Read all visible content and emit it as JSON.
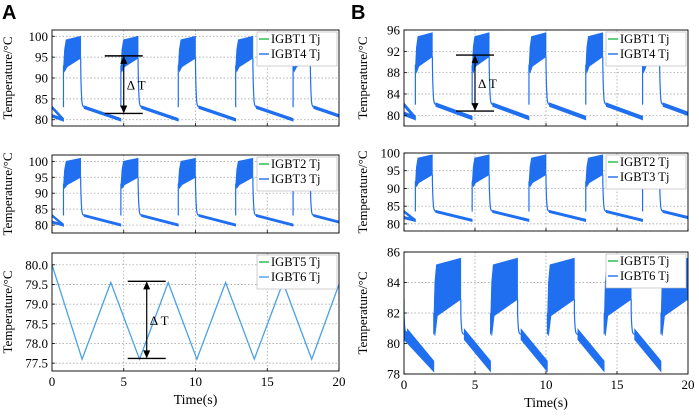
{
  "panels": [
    {
      "letter": "A"
    },
    {
      "letter": "B"
    }
  ],
  "chart_data": [
    {
      "type": "line",
      "panel": "A",
      "row": 1,
      "xlabel": "",
      "ylabel": "Temperature/°C",
      "xlim": [
        0,
        20
      ],
      "ylim": [
        78.5,
        101.5
      ],
      "xticks": [
        0,
        5,
        10,
        15,
        20
      ],
      "yticks": [
        80,
        85,
        90,
        95,
        100
      ],
      "ytick_labels": [
        "80",
        "85",
        "90",
        "95",
        "100"
      ],
      "shape": "pulse",
      "period": 4,
      "pulse_start": 0.8,
      "pulse_end": 2.0,
      "low_start": 83.0,
      "low_end": 80.0,
      "high_min": 93.0,
      "high_max": 100.0,
      "series": [
        {
          "name": "IGBT1 Tj",
          "color": "#22bb44"
        },
        {
          "name": "IGBT4 Tj",
          "color": "#1f6ff0"
        }
      ],
      "annotation": {
        "label": "Δ T",
        "x": 5.0,
        "y_top": 95.3,
        "y_bottom": 81.5
      }
    },
    {
      "type": "line",
      "panel": "A",
      "row": 2,
      "xlabel": "",
      "ylabel": "Temperature/°C",
      "xlim": [
        0,
        20
      ],
      "ylim": [
        77.5,
        102
      ],
      "xticks": [
        0,
        5,
        10,
        15,
        20
      ],
      "yticks": [
        80,
        85,
        90,
        95,
        100
      ],
      "ytick_labels": [
        "80",
        "85",
        "90",
        "95",
        "100"
      ],
      "shape": "pulse",
      "period": 4,
      "pulse_start": 0.8,
      "pulse_end": 2.0,
      "low_start": 83.0,
      "low_end": 80.0,
      "high_min": 93.0,
      "high_max": 101.0,
      "series": [
        {
          "name": "IGBT2 Tj",
          "color": "#22bb44"
        },
        {
          "name": "IGBT3 Tj",
          "color": "#1f6ff0"
        }
      ]
    },
    {
      "type": "line",
      "panel": "A",
      "row": 3,
      "xlabel": "Time(s)",
      "ylabel": "Temperature/°C",
      "xlim": [
        0,
        20
      ],
      "ylim": [
        77.3,
        80.3
      ],
      "xticks": [
        0,
        5,
        10,
        15,
        20
      ],
      "yticks": [
        77.5,
        78.0,
        78.5,
        79.0,
        79.5,
        80.0
      ],
      "ytick_labels": [
        "77.5",
        "78.0",
        "78.5",
        "79.0",
        "79.5",
        "80.0"
      ],
      "shape": "triangle",
      "points_x": [
        0,
        2.1,
        4.1,
        6.1,
        8.1,
        10.1,
        12.1,
        14.1,
        16.1,
        18.1,
        20
      ],
      "points_y": [
        80.0,
        77.6,
        79.55,
        77.6,
        79.55,
        77.6,
        79.55,
        77.6,
        79.55,
        77.6,
        79.5
      ],
      "series": [
        {
          "name": "IGBT5 Tj",
          "color": "#22bb44"
        },
        {
          "name": "IGBT6 Tj",
          "color": "#4aa0e8"
        }
      ],
      "annotation": {
        "label": "Δ T",
        "x": 6.6,
        "y_top": 79.58,
        "y_bottom": 77.62
      }
    },
    {
      "type": "line",
      "panel": "B",
      "row": 1,
      "xlabel": "",
      "ylabel": "Temperature/°C",
      "xlim": [
        0,
        20
      ],
      "ylim": [
        78,
        96
      ],
      "xticks": [
        0,
        5,
        10,
        15,
        20
      ],
      "yticks": [
        80,
        84,
        88,
        92,
        96
      ],
      "ytick_labels": [
        "80",
        "84",
        "88",
        "92",
        "96"
      ],
      "shape": "pulse",
      "period": 4,
      "pulse_start": 0.8,
      "pulse_end": 2.0,
      "low_start": 82.0,
      "low_end": 79.5,
      "high_min": 89.5,
      "high_max": 95.5,
      "series": [
        {
          "name": "IGBT1 Tj",
          "color": "#22bb44"
        },
        {
          "name": "IGBT4 Tj",
          "color": "#1f6ff0"
        }
      ],
      "annotation": {
        "label": "Δ T",
        "x": 5.0,
        "y_top": 91.3,
        "y_bottom": 80.8
      }
    },
    {
      "type": "line",
      "panel": "B",
      "row": 2,
      "xlabel": "",
      "ylabel": "Temperature/°C",
      "xlim": [
        0,
        20
      ],
      "ylim": [
        78,
        100
      ],
      "xticks": [
        0,
        5,
        10,
        15,
        20
      ],
      "yticks": [
        80,
        85,
        90,
        95,
        100
      ],
      "ytick_labels": [
        "80",
        "85",
        "90",
        "95",
        "100"
      ],
      "shape": "pulse",
      "period": 4,
      "pulse_start": 0.8,
      "pulse_end": 2.0,
      "low_start": 83.5,
      "low_end": 81.0,
      "high_min": 92.0,
      "high_max": 99.5,
      "series": [
        {
          "name": "IGBT2 Tj",
          "color": "#22bb44"
        },
        {
          "name": "IGBT3 Tj",
          "color": "#1f6ff0"
        }
      ]
    },
    {
      "type": "line",
      "panel": "B",
      "row": 3,
      "xlabel": "Time(s)",
      "ylabel": "Temperature/°C",
      "xlim": [
        0,
        20
      ],
      "ylim": [
        78,
        86
      ],
      "xticks": [
        0,
        5,
        10,
        15,
        20
      ],
      "yticks": [
        78,
        80,
        82,
        84,
        86
      ],
      "ytick_labels": [
        "78",
        "80",
        "82",
        "84",
        "86"
      ],
      "shape": "pulse",
      "period": 4,
      "pulse_start": 2.1,
      "pulse_end": 4.0,
      "low_start": 80.6,
      "low_end": 78.5,
      "high_min": 82.0,
      "high_max": 85.6,
      "series": [
        {
          "name": "IGBT5 Tj",
          "color": "#22bb44"
        },
        {
          "name": "IGBT6 Tj",
          "color": "#1f6ff0"
        }
      ]
    }
  ]
}
